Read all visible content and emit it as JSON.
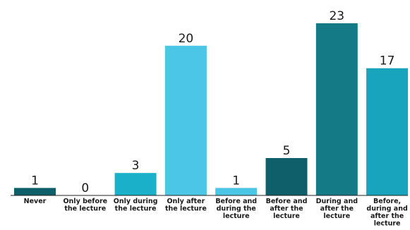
{
  "chart_data": {
    "type": "bar",
    "title": "",
    "xlabel": "",
    "ylabel": "",
    "categories": [
      [
        "Never"
      ],
      [
        "Only before",
        "the lecture"
      ],
      [
        "Only during",
        "the lecture"
      ],
      [
        "Only after",
        "the lecture"
      ],
      [
        "Before and",
        "during the",
        "lecture"
      ],
      [
        "Before and",
        "after the",
        "lecture"
      ],
      [
        "During and",
        "after the",
        "lecture"
      ],
      [
        "Before,",
        "during and",
        "after the",
        "lecture"
      ]
    ],
    "values": [
      1,
      0,
      3,
      20,
      1,
      5,
      23,
      17
    ],
    "bar_colors": [
      "#0f5f6b",
      "#0f5f6b",
      "#1bb0c9",
      "#4bc6e6",
      "#4bc6e6",
      "#0f5f6b",
      "#137a86",
      "#17a4bc"
    ],
    "ylim": [
      0,
      23
    ],
    "grid": false,
    "legend": "none",
    "data_labels": true
  }
}
